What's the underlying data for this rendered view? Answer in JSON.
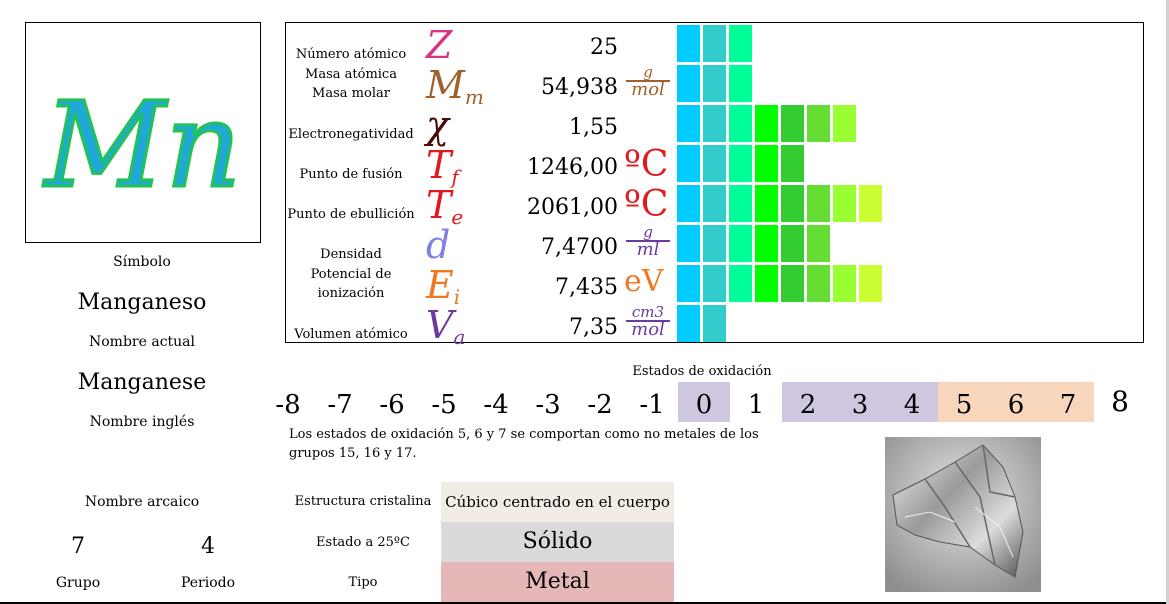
{
  "element": {
    "symbol": "Mn",
    "symbol_label": "Símbolo",
    "name": "Manganeso",
    "name_label": "Nombre actual",
    "english_name": "Manganese",
    "english_label": "Nombre inglés",
    "archaic_label": "Nombre arcaico",
    "group": "7",
    "group_label": "Grupo",
    "period": "4",
    "period_label": "Periodo"
  },
  "properties": [
    {
      "label": "Número atómico",
      "symbol": "Z",
      "value": "25",
      "unit": "",
      "bars": 3,
      "symbol_color": "#d63384"
    },
    {
      "label": "Masa atómica\nMasa molar",
      "symbol": "Mm",
      "value": "54,938",
      "unit_num": "g",
      "unit_den": "mol",
      "bars": 3,
      "symbol_color": "#a0622d",
      "unit_color": "#a0622d"
    },
    {
      "label": "Electronegatividad",
      "symbol": "χ",
      "value": "1,55",
      "unit": "",
      "bars": 7,
      "symbol_color": "#4a0a0a"
    },
    {
      "label": "Punto de fusión",
      "symbol": "Tf",
      "value": "1246,00",
      "unit": "ºC",
      "bars": 5,
      "symbol_color": "#e0191e",
      "unit_color": "#e0191e"
    },
    {
      "label": "Punto de ebullición",
      "symbol": "Te",
      "value": "2061,00",
      "unit": "ºC",
      "bars": 8,
      "symbol_color": "#e0191e",
      "unit_color": "#e0191e"
    },
    {
      "label": "Densidad",
      "symbol": "d",
      "value": "7,4700",
      "unit_num": "g",
      "unit_den": "ml",
      "bars": 6,
      "symbol_color": "#8080e8",
      "unit_color": "#6a3aa0"
    },
    {
      "label": "Potencial de\nionización",
      "symbol": "Ei",
      "value": "7,435",
      "unit": "eV",
      "bars": 8,
      "symbol_color": "#f07820",
      "unit_color": "#f07820"
    },
    {
      "label": "Volumen atómico",
      "symbol": "Va",
      "value": "7,35",
      "unit_num": "cm3",
      "unit_den": "mol",
      "bars": 2,
      "symbol_color": "#6a3aa0",
      "unit_color": "#6a3aa0"
    }
  ],
  "bar_colors": [
    "#00ccff",
    "#33cccc",
    "#00ff99",
    "#00ff00",
    "#33cc33",
    "#66dd33",
    "#99ff33",
    "#ccff33"
  ],
  "oxidation": {
    "title": "Estados de oxidación",
    "states": [
      "-8",
      "-7",
      "-6",
      "-5",
      "-4",
      "-3",
      "-2",
      "-1",
      "0",
      "1",
      "2",
      "3",
      "4",
      "5",
      "6",
      "7",
      "8"
    ],
    "highlight_purple": [
      "0",
      "2",
      "3",
      "4"
    ],
    "highlight_orange": [
      "5",
      "6",
      "7"
    ],
    "note": "Los estados de oxidación 5, 6 y 7 se comportan como no metales de los grupos 15, 16 y 17."
  },
  "details": {
    "structure_label": "Estructura cristalina",
    "structure_value": "Cúbico centrado en el cuerpo",
    "state_label": "Estado a 25ºC",
    "state_value": "Sólido",
    "type_label": "Tipo",
    "type_value": "Metal"
  },
  "colors": {
    "symbol_fill": "#1fa8d8",
    "symbol_stroke": "#22c25a",
    "ox_purple": "#cfc6e0",
    "ox_orange": "#f8d6bc",
    "structure_bg": "#f1ede4",
    "state_bg": "#dadadb",
    "type_bg": "#e6b7b7"
  }
}
